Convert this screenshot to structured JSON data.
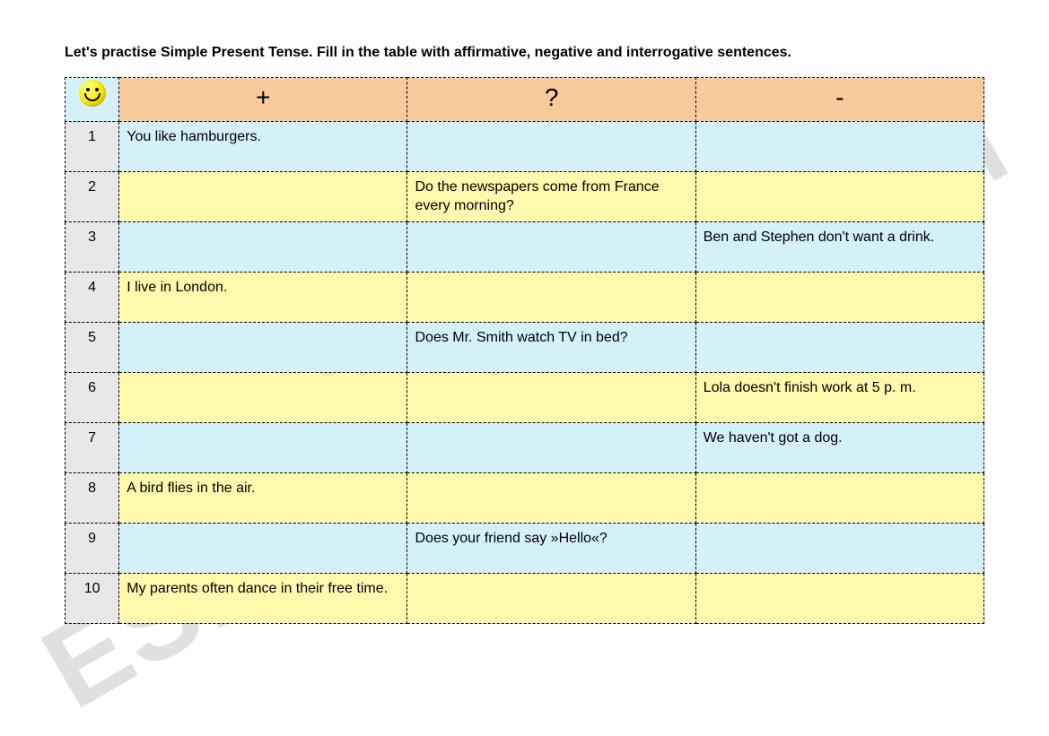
{
  "instruction": "Let's practise Simple Present Tense. Fill in the table with affirmative, negative and interrogative sentences.",
  "watermark": "ESLprintables.com",
  "columns": {
    "affirmative": "+",
    "interrogative": "?",
    "negative": "-"
  },
  "colors": {
    "header_num_bg": "#d4f0f9",
    "header_cols_bg": "#f9cb9c",
    "row_odd_num_bg": "#e8e8e8",
    "row_even_num_bg": "#e8e8e8",
    "row_odd_bg": "#d4f0f9",
    "row_even_bg": "#fff9ae"
  },
  "rows": [
    {
      "n": "1",
      "aff": "You like hamburgers.",
      "q": "",
      "neg": ""
    },
    {
      "n": "2",
      "aff": "",
      "q": "Do the newspapers come from France every morning?",
      "neg": ""
    },
    {
      "n": "3",
      "aff": "",
      "q": "",
      "neg": "Ben and Stephen don't want a drink."
    },
    {
      "n": "4",
      "aff": "I live in London.",
      "q": "",
      "neg": ""
    },
    {
      "n": "5",
      "aff": "",
      "q": "Does Mr. Smith watch TV in bed?",
      "neg": ""
    },
    {
      "n": "6",
      "aff": "",
      "q": "",
      "neg": "Lola doesn't finish work at 5 p. m."
    },
    {
      "n": "7",
      "aff": "",
      "q": "",
      "neg": "We haven't got a dog."
    },
    {
      "n": "8",
      "aff": "A bird flies in the air.",
      "q": "",
      "neg": ""
    },
    {
      "n": "9",
      "aff": "",
      "q": "Does your friend say »Hello«?",
      "neg": ""
    },
    {
      "n": "10",
      "aff": "My parents often dance in their free time.",
      "q": "",
      "neg": ""
    }
  ]
}
